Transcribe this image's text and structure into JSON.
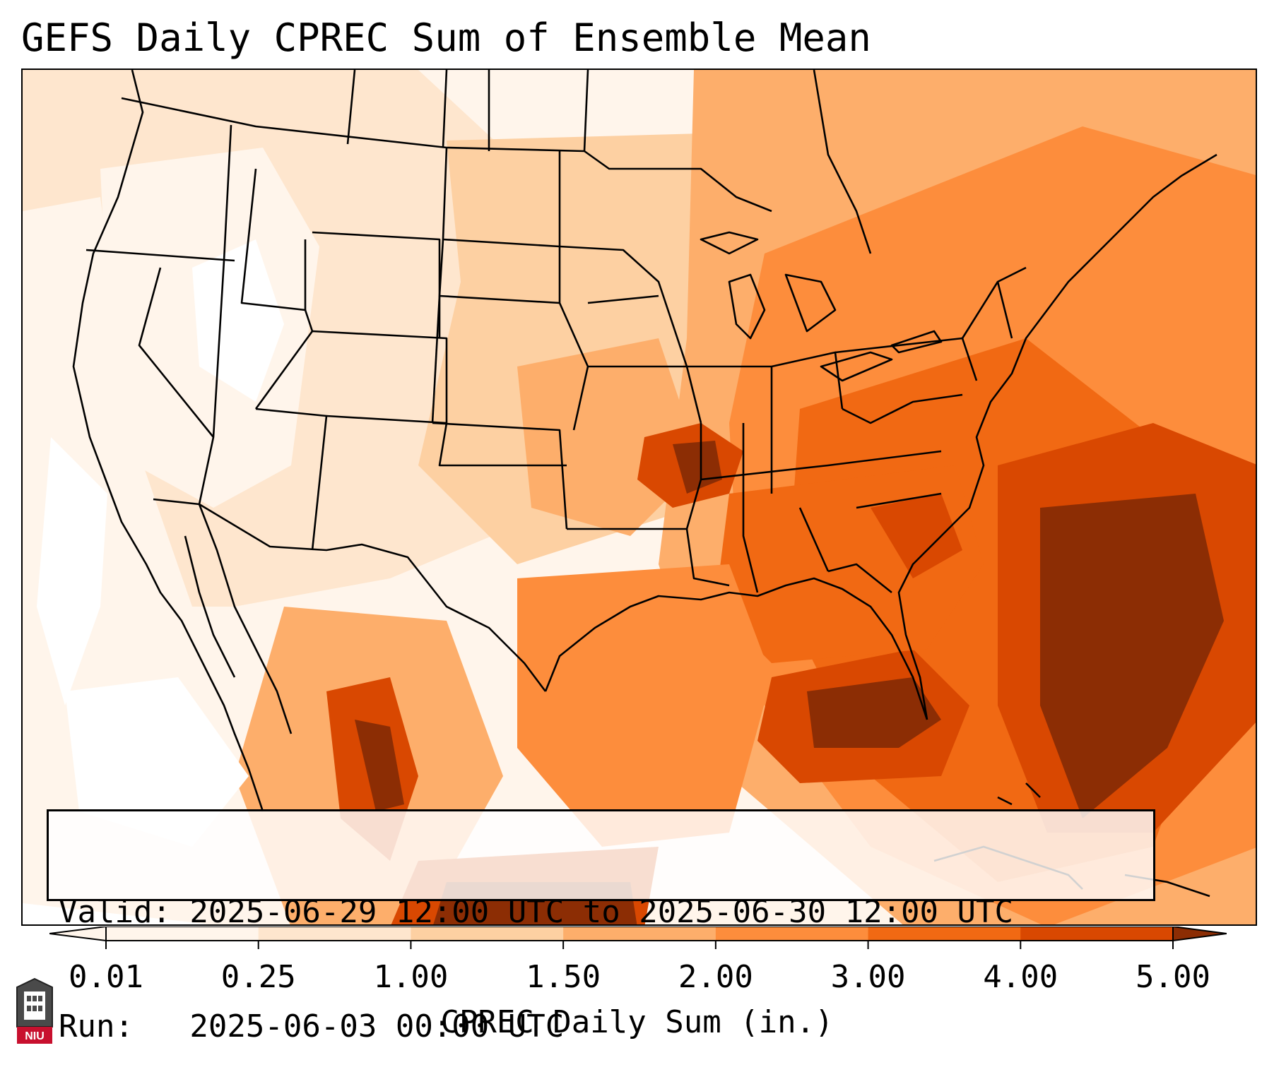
{
  "title": "GEFS Daily CPREC Sum of Ensemble Mean",
  "info_box": {
    "valid_line": "Valid: 2025-06-29 12:00 UTC to 2025-06-30 12:00 UTC",
    "run_line": "Run:   2025-06-03 00:00 UTC"
  },
  "colorbar": {
    "label": "CPREC Daily Sum (in.)",
    "ticks": [
      "0.01",
      "0.25",
      "1.00",
      "1.50",
      "2.00",
      "3.00",
      "4.00",
      "5.00"
    ],
    "colors": [
      "#fff5eb",
      "#fee6ce",
      "#fdd0a2",
      "#fdae6b",
      "#fd8d3c",
      "#f16913",
      "#d94801",
      "#8c2d04"
    ],
    "extend": "both"
  },
  "logo": {
    "text": "NIU",
    "name": "Northern Illinois University logo"
  }
}
